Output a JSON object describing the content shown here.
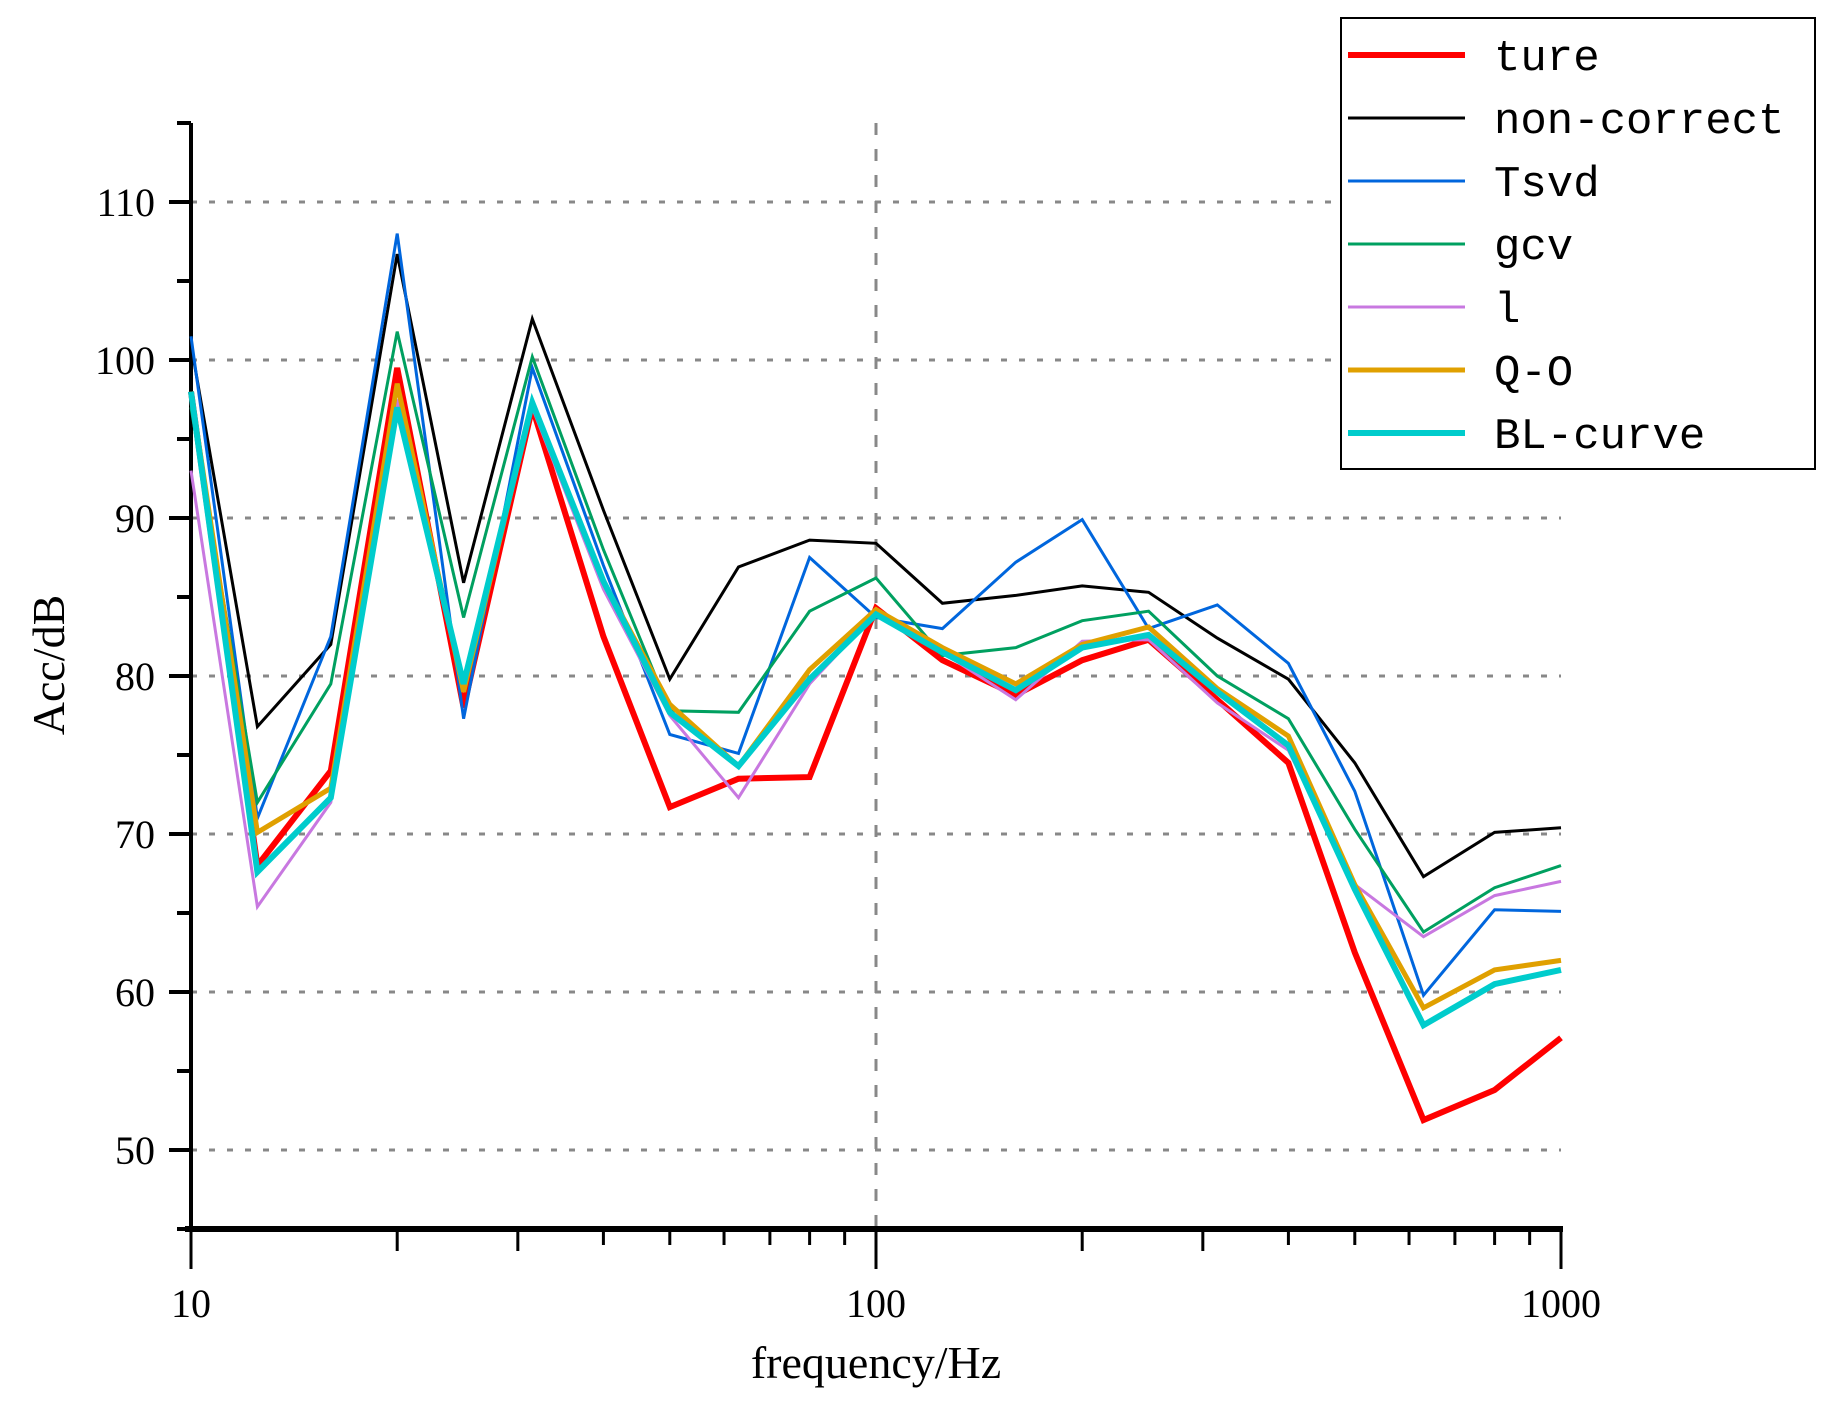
{
  "chart_data": {
    "type": "line",
    "title": "",
    "xlabel": "frequency/Hz",
    "ylabel": "Acc/dB",
    "xscale": "log",
    "xlim": [
      10,
      1000
    ],
    "ylim": [
      45,
      115
    ],
    "xticks": [
      10,
      100,
      1000
    ],
    "xtick_labels": [
      "10",
      "100",
      "1000"
    ],
    "yticks": [
      50,
      60,
      70,
      80,
      90,
      100,
      110
    ],
    "ytick_labels": [
      "50",
      "60",
      "70",
      "80",
      "90",
      "100",
      "110"
    ],
    "grid": "dotted gray at y major ticks and x=100",
    "legend_position": "top-right",
    "x": [
      10,
      12.5,
      16,
      20,
      25,
      31.5,
      40,
      50,
      63,
      80,
      100,
      125,
      160,
      200,
      250,
      315,
      400,
      500,
      630,
      800,
      1000
    ],
    "series": [
      {
        "name": "ture",
        "color": "#ff0000",
        "width": 6,
        "values": [
          98,
          68,
          74,
          99.5,
          78,
          97,
          82.5,
          71.7,
          73.5,
          73.6,
          84.3,
          81,
          78.8,
          81,
          82.3,
          78.5,
          74.5,
          62.5,
          51.9,
          53.8,
          57.1
        ]
      },
      {
        "name": "non-correct",
        "color": "#000000",
        "width": 3,
        "values": [
          101,
          76.8,
          82,
          106.7,
          85.9,
          102.6,
          90.5,
          79.8,
          86.9,
          88.6,
          88.4,
          84.6,
          85.1,
          85.7,
          85.3,
          82.4,
          79.8,
          74.5,
          67.3,
          70.1,
          70.4
        ]
      },
      {
        "name": "Tsvd",
        "color": "#0066dd",
        "width": 3,
        "values": [
          101.5,
          71,
          82.5,
          108,
          77.3,
          99.5,
          87,
          76.3,
          75.1,
          87.5,
          83.7,
          83,
          87.2,
          89.9,
          83,
          84.5,
          80.8,
          72.7,
          59.8,
          65.2,
          65.1
        ]
      },
      {
        "name": "gcv",
        "color": "#00a060",
        "width": 3,
        "values": [
          97,
          72,
          79.5,
          101.8,
          83.7,
          100.2,
          88,
          77.8,
          77.7,
          84.1,
          86.2,
          81.3,
          81.8,
          83.5,
          84.1,
          80,
          77.3,
          70.3,
          63.8,
          66.6,
          68
        ]
      },
      {
        "name": "l",
        "color": "#c878e0",
        "width": 3,
        "values": [
          93,
          65.4,
          72,
          97.5,
          79,
          97,
          85.5,
          77.5,
          72.3,
          79.5,
          84,
          81.5,
          78.5,
          82.2,
          82.3,
          78.3,
          75.3,
          66.8,
          63.5,
          66.1,
          67
        ]
      },
      {
        "name": "Q-O",
        "color": "#e0a000",
        "width": 5,
        "values": [
          98,
          70.1,
          72.9,
          98.5,
          79,
          97.3,
          86,
          78.2,
          74.3,
          80.4,
          84.2,
          81.8,
          79.5,
          82,
          83.1,
          79.2,
          76.2,
          66.8,
          59,
          61.4,
          62
        ]
      },
      {
        "name": "BL-curve",
        "color": "#00cccc",
        "width": 6,
        "values": [
          98,
          67.6,
          72.3,
          97,
          79.5,
          97.3,
          86,
          77.7,
          74.3,
          79.8,
          83.9,
          81.5,
          79.1,
          81.8,
          82.6,
          79,
          75.6,
          66.5,
          57.9,
          60.5,
          61.4
        ]
      }
    ]
  }
}
